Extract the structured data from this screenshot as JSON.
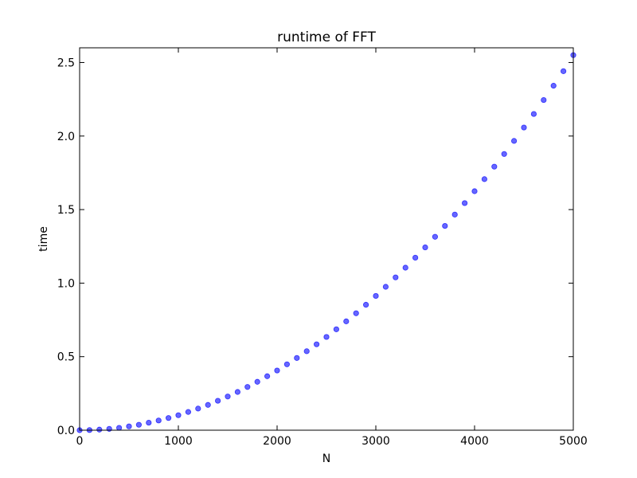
{
  "chart_data": {
    "type": "scatter",
    "title": "runtime of FFT",
    "xlabel": "N",
    "ylabel": "time",
    "xlim": [
      0,
      5000
    ],
    "ylim": [
      0.0,
      2.6
    ],
    "xticks": [
      "0",
      "1000",
      "2000",
      "3000",
      "4000",
      "5000"
    ],
    "yticks": [
      "0.0",
      "0.5",
      "1.0",
      "1.5",
      "2.0",
      "2.5"
    ],
    "grid": false,
    "legend": "none",
    "marker_color": "#0000ff",
    "series": [
      {
        "x": [
          0,
          100,
          200,
          300,
          400,
          500,
          600,
          700,
          800,
          900,
          1000,
          1100,
          1200,
          1300,
          1400,
          1500,
          1600,
          1700,
          1800,
          1900,
          2000,
          2100,
          2200,
          2300,
          2400,
          2500,
          2600,
          2700,
          2800,
          2900,
          3000,
          3100,
          3200,
          3300,
          3400,
          3500,
          3600,
          3700,
          3800,
          3900,
          4000,
          4100,
          4200,
          4300,
          4400,
          4500,
          4600,
          4700,
          4800,
          4900,
          5000
        ],
        "y": [
          0.0,
          0.001,
          0.004,
          0.009,
          0.016,
          0.026,
          0.037,
          0.051,
          0.066,
          0.083,
          0.102,
          0.124,
          0.147,
          0.172,
          0.2,
          0.229,
          0.26,
          0.294,
          0.329,
          0.367,
          0.406,
          0.448,
          0.491,
          0.537,
          0.584,
          0.634,
          0.686,
          0.74,
          0.795,
          0.853,
          0.913,
          0.975,
          1.039,
          1.105,
          1.173,
          1.243,
          1.315,
          1.389,
          1.466,
          1.544,
          1.625,
          1.707,
          1.792,
          1.878,
          1.967,
          2.058,
          2.15,
          2.245,
          2.342,
          2.441,
          2.55
        ]
      }
    ]
  }
}
